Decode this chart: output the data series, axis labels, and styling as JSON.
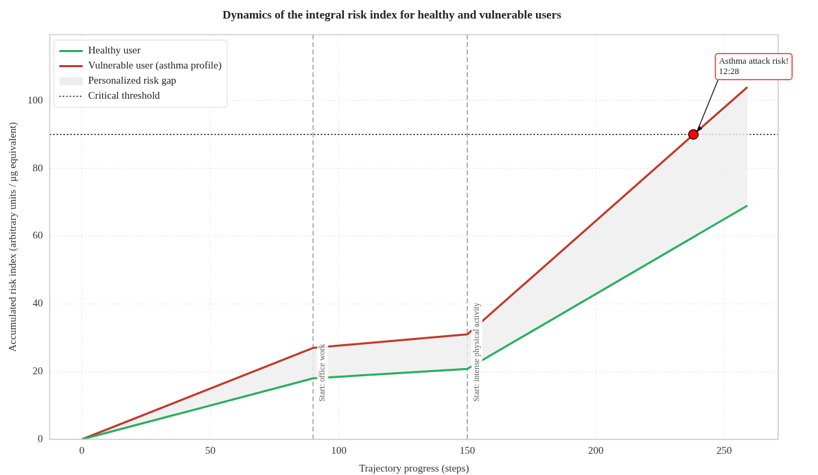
{
  "chart_data": {
    "type": "line",
    "title": "Dynamics of the integral risk index for healthy and vulnerable users",
    "xlabel": "Trajectory progress (steps)",
    "ylabel": "Accumulated risk index (arbitrary units / μg equivalent)",
    "series": [
      {
        "name": "Healthy user",
        "color": "#27ae60",
        "x": [
          0,
          90,
          150,
          259
        ],
        "values": [
          0,
          18,
          20.8,
          69
        ]
      },
      {
        "name": "Vulnerable user (asthma profile)",
        "color": "#c0392b",
        "x": [
          0,
          90,
          150,
          259
        ],
        "values": [
          0,
          27,
          31,
          104
        ]
      },
      {
        "name": "Personalized risk gap",
        "type": "area",
        "color": "#eeeeee",
        "x": [
          0,
          90,
          150,
          259
        ],
        "values": [
          null,
          null,
          null,
          null
        ],
        "lower": [
          0,
          18,
          20.8,
          69
        ],
        "upper": [
          0,
          27,
          31,
          104
        ]
      },
      {
        "type": "scatter",
        "color": "#ff0000",
        "x": [
          238
        ],
        "values": [
          90
        ],
        "marker": "circle"
      }
    ],
    "ref_lines": [
      {
        "axis": "y",
        "value": 90,
        "label": "Critical threshold",
        "color": "#000000",
        "line_style": "dotted"
      },
      {
        "axis": "x",
        "value": 90,
        "label": "Start: office work",
        "color": "#aaaaaa",
        "line_style": "dashed"
      },
      {
        "axis": "x",
        "value": 150,
        "label": "Start: intense physical activity",
        "color": "#aaaaaa",
        "line_style": "dashed"
      }
    ],
    "annotations": [
      {
        "text": "Asthma attack risk!\n12:28",
        "x": 238,
        "y": 90
      }
    ],
    "xlim": [
      -12.5,
      271
    ],
    "ylim": [
      0,
      119.5
    ],
    "xticks": [
      0,
      50,
      100,
      150,
      200,
      250
    ],
    "yticks": [
      0,
      20,
      40,
      60,
      80,
      100
    ],
    "grid": true,
    "legend": "top left",
    "line_style": "solid",
    "marker": "none"
  }
}
